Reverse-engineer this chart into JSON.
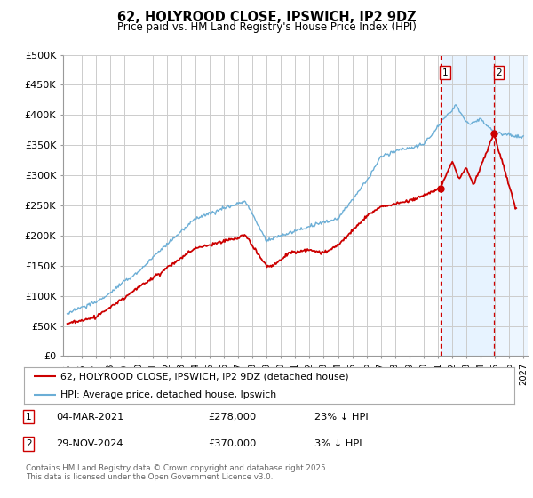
{
  "title": "62, HOLYROOD CLOSE, IPSWICH, IP2 9DZ",
  "subtitle": "Price paid vs. HM Land Registry's House Price Index (HPI)",
  "ylabel_ticks": [
    "£0",
    "£50K",
    "£100K",
    "£150K",
    "£200K",
    "£250K",
    "£300K",
    "£350K",
    "£400K",
    "£450K",
    "£500K"
  ],
  "ytick_values": [
    0,
    50000,
    100000,
    150000,
    200000,
    250000,
    300000,
    350000,
    400000,
    450000,
    500000
  ],
  "xlim_start": 1994.7,
  "xlim_end": 2027.3,
  "ylim": [
    0,
    500000
  ],
  "hpi_color": "#6baed6",
  "price_color": "#cc0000",
  "grid_color": "#cccccc",
  "shade_color": "#ddeeff",
  "background_color": "#ffffff",
  "transaction1_date": "04-MAR-2021",
  "transaction1_price": 278000,
  "transaction1_pct": "23% ↓ HPI",
  "transaction1_year": 2021.17,
  "transaction2_date": "29-NOV-2024",
  "transaction2_price": 370000,
  "transaction2_pct": "3% ↓ HPI",
  "transaction2_year": 2024.92,
  "legend_label1": "62, HOLYROOD CLOSE, IPSWICH, IP2 9DZ (detached house)",
  "legend_label2": "HPI: Average price, detached house, Ipswich",
  "footnote": "Contains HM Land Registry data © Crown copyright and database right 2025.\nThis data is licensed under the Open Government Licence v3.0.",
  "xtick_years": [
    1995,
    1996,
    1997,
    1998,
    1999,
    2000,
    2001,
    2002,
    2003,
    2004,
    2005,
    2006,
    2007,
    2008,
    2009,
    2010,
    2011,
    2012,
    2013,
    2014,
    2015,
    2016,
    2017,
    2018,
    2019,
    2020,
    2021,
    2022,
    2023,
    2024,
    2025,
    2026,
    2027
  ]
}
